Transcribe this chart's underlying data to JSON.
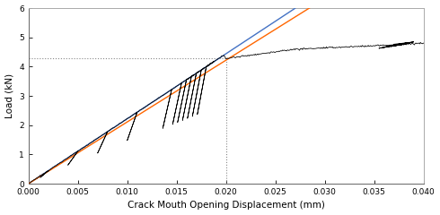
{
  "title": "",
  "xlabel": "Crack Mouth Opening Displacement (mm)",
  "ylabel": "Load (kN)",
  "xlim": [
    0.0,
    0.04
  ],
  "ylim": [
    0,
    6
  ],
  "xticks": [
    0.0,
    0.005,
    0.01,
    0.015,
    0.02,
    0.025,
    0.03,
    0.035,
    0.04
  ],
  "yticks": [
    0,
    1,
    2,
    3,
    4,
    5,
    6
  ],
  "elastic_slope": 222.0,
  "elastic_95_slope": 211.0,
  "dotted_line_y": 4.28,
  "dotted_line_x": 0.02,
  "elastic_color": "#4472C4",
  "elastic_95_color": "#FF6600",
  "data_color": "#000000",
  "dotted_color": "#888888",
  "background_color": "#ffffff"
}
